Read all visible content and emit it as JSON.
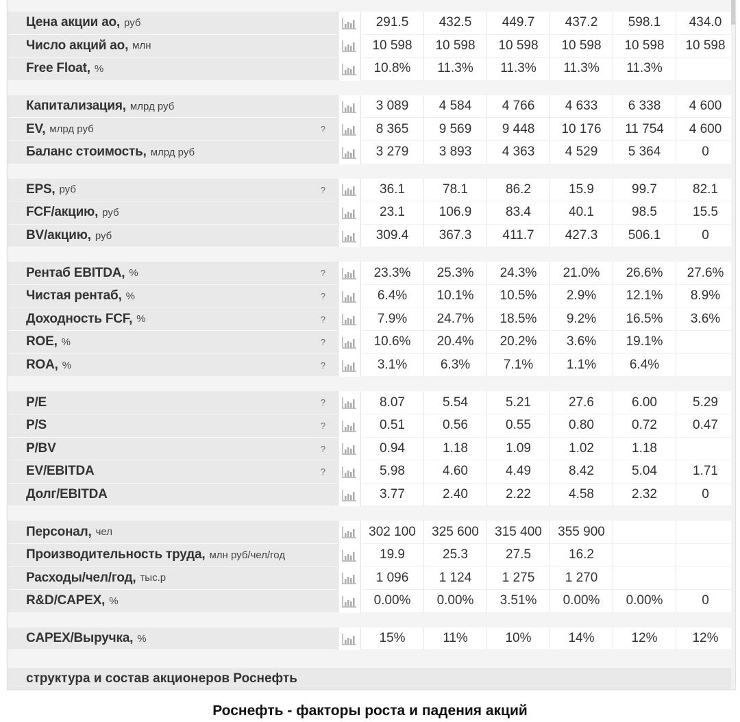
{
  "groups": [
    {
      "rows": [
        {
          "name": "Цена акции ао,",
          "unit": "руб",
          "help": "",
          "values": [
            "291.5",
            "432.5",
            "449.7",
            "437.2",
            "598.1",
            "434.0"
          ]
        },
        {
          "name": "Число акций ао,",
          "unit": "млн",
          "help": "",
          "values": [
            "10 598",
            "10 598",
            "10 598",
            "10 598",
            "10 598",
            "10 598"
          ]
        },
        {
          "name": "Free Float,",
          "unit": "%",
          "help": "",
          "values": [
            "10.8%",
            "11.3%",
            "11.3%",
            "11.3%",
            "11.3%",
            ""
          ]
        }
      ]
    },
    {
      "rows": [
        {
          "name": "Капитализация,",
          "unit": "млрд руб",
          "help": "",
          "values": [
            "3 089",
            "4 584",
            "4 766",
            "4 633",
            "6 338",
            "4 600"
          ]
        },
        {
          "name": "EV,",
          "unit": "млрд руб",
          "help": "?",
          "values": [
            "8 365",
            "9 569",
            "9 448",
            "10 176",
            "11 754",
            "4 600"
          ]
        },
        {
          "name": "Баланс стоимость,",
          "unit": "млрд руб",
          "help": "",
          "values": [
            "3 279",
            "3 893",
            "4 363",
            "4 529",
            "5 364",
            "0"
          ]
        }
      ]
    },
    {
      "rows": [
        {
          "name": "EPS,",
          "unit": "руб",
          "help": "?",
          "values": [
            "36.1",
            "78.1",
            "86.2",
            "15.9",
            "99.7",
            "82.1"
          ]
        },
        {
          "name": "FCF/акцию,",
          "unit": "руб",
          "help": "",
          "values": [
            "23.1",
            "106.9",
            "83.4",
            "40.1",
            "98.5",
            "15.5"
          ]
        },
        {
          "name": "BV/акцию,",
          "unit": "руб",
          "help": "",
          "values": [
            "309.4",
            "367.3",
            "411.7",
            "427.3",
            "506.1",
            "0"
          ]
        }
      ]
    },
    {
      "rows": [
        {
          "name": "Рентаб EBITDA,",
          "unit": "%",
          "help": "?",
          "values": [
            "23.3%",
            "25.3%",
            "24.3%",
            "21.0%",
            "26.6%",
            "27.6%"
          ]
        },
        {
          "name": "Чистая рентаб,",
          "unit": "%",
          "help": "?",
          "values": [
            "6.4%",
            "10.1%",
            "10.5%",
            "2.9%",
            "12.1%",
            "8.9%"
          ]
        },
        {
          "name": "Доходность FCF,",
          "unit": "%",
          "help": "?",
          "values": [
            "7.9%",
            "24.7%",
            "18.5%",
            "9.2%",
            "16.5%",
            "3.6%"
          ]
        },
        {
          "name": "ROE,",
          "unit": "%",
          "help": "?",
          "values": [
            "10.6%",
            "20.4%",
            "20.2%",
            "3.6%",
            "19.1%",
            ""
          ]
        },
        {
          "name": "ROA,",
          "unit": "%",
          "help": "?",
          "values": [
            "3.1%",
            "6.3%",
            "7.1%",
            "1.1%",
            "6.4%",
            ""
          ]
        }
      ]
    },
    {
      "rows": [
        {
          "name": "P/E",
          "unit": "",
          "help": "?",
          "values": [
            "8.07",
            "5.54",
            "5.21",
            "27.6",
            "6.00",
            "5.29"
          ]
        },
        {
          "name": "P/S",
          "unit": "",
          "help": "?",
          "values": [
            "0.51",
            "0.56",
            "0.55",
            "0.80",
            "0.72",
            "0.47"
          ]
        },
        {
          "name": "P/BV",
          "unit": "",
          "help": "?",
          "values": [
            "0.94",
            "1.18",
            "1.09",
            "1.02",
            "1.18",
            ""
          ]
        },
        {
          "name": "EV/EBITDA",
          "unit": "",
          "help": "?",
          "values": [
            "5.98",
            "4.60",
            "4.49",
            "8.42",
            "5.04",
            "1.71"
          ]
        },
        {
          "name": "Долг/EBITDA",
          "unit": "",
          "help": "",
          "values": [
            "3.77",
            "2.40",
            "2.22",
            "4.58",
            "2.32",
            "0"
          ]
        }
      ]
    },
    {
      "rows": [
        {
          "name": "Персонал,",
          "unit": "чел",
          "help": "",
          "values": [
            "302 100",
            "325 600",
            "315 400",
            "355 900",
            "",
            ""
          ]
        },
        {
          "name": "Производительность труда,",
          "unit": "млн руб/чел/год",
          "help": "",
          "values": [
            "19.9",
            "25.3",
            "27.5",
            "16.2",
            "",
            ""
          ]
        },
        {
          "name": "Расходы/чел/год,",
          "unit": "тыс.р",
          "help": "",
          "values": [
            "1 096",
            "1 124",
            "1 275",
            "1 270",
            "",
            ""
          ]
        },
        {
          "name": "R&D/CAPEX,",
          "unit": "%",
          "help": "",
          "values": [
            "0.00%",
            "0.00%",
            "3.51%",
            "0.00%",
            "0.00%",
            "0"
          ]
        }
      ]
    },
    {
      "rows": [
        {
          "name": "CAPEX/Выручка,",
          "unit": "%",
          "help": "",
          "values": [
            "15%",
            "11%",
            "10%",
            "14%",
            "12%",
            "12%"
          ]
        }
      ]
    }
  ],
  "footer": {
    "link_text": "структура и состав акционеров Роснефть"
  },
  "bottom_title": "Роснефть - факторы роста и падения акций",
  "icons": {
    "row_chart": "bar-chart-icon",
    "help": "question-mark"
  }
}
